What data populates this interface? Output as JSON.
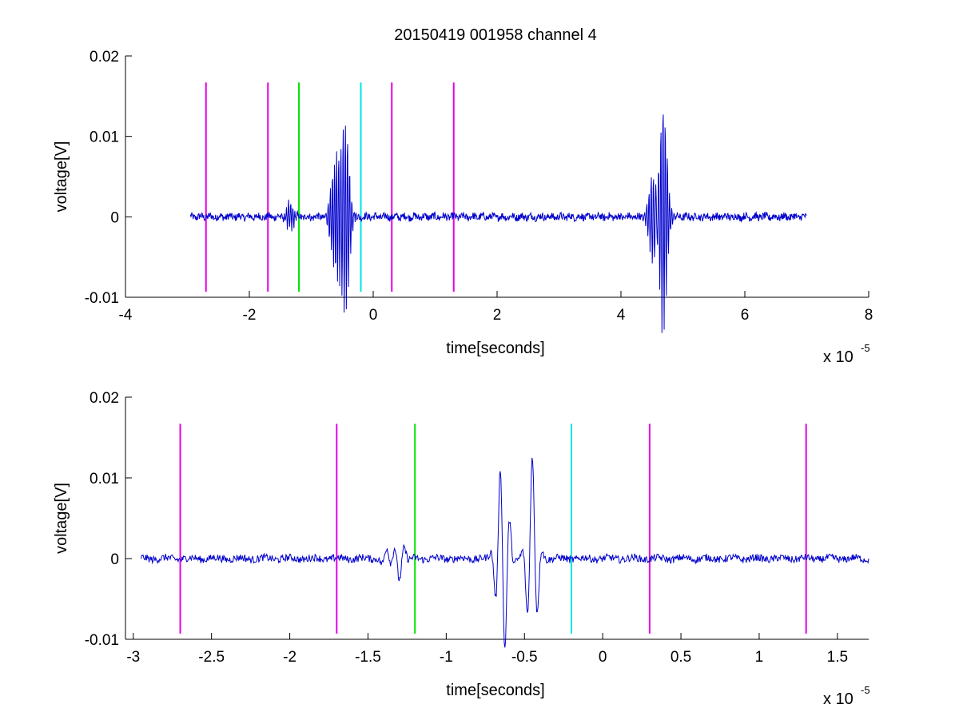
{
  "figure": {
    "title": "20150419 001958 channel 4",
    "background": "#ffffff"
  },
  "chart_data": [
    {
      "type": "line",
      "title": "20150419 001958 channel 4",
      "xlabel": "time[seconds]",
      "ylabel": "voltage[V]",
      "x_multiplier_label": "x 10",
      "x_multiplier_exponent": "-5",
      "xlim": [
        -4,
        8
      ],
      "ylim": [
        -0.01,
        0.02
      ],
      "x_ticks": [
        -4,
        -2,
        0,
        2,
        4,
        6,
        8
      ],
      "x_tick_labels": [
        "-4",
        "-2",
        "0",
        "2",
        "4",
        "6",
        "8"
      ],
      "y_ticks": [
        -0.01,
        0,
        0.01,
        0.02
      ],
      "y_tick_labels": [
        "-0.01",
        "0",
        "0.01",
        "0.02"
      ],
      "grid": false,
      "series_color": "#0000cc",
      "signal_range": [
        -2.95,
        7.0
      ],
      "bursts": [
        {
          "x": -1.35,
          "amp": 0.0018,
          "polarity": -1
        },
        {
          "x": -0.62,
          "amp": 0.0085,
          "polarity": 1
        },
        {
          "x": -0.58,
          "amp": 0.0085,
          "polarity": -1
        },
        {
          "x": -0.45,
          "amp": 0.0122,
          "polarity": 1
        },
        {
          "x": 4.52,
          "amp": 0.0078,
          "polarity": 1
        },
        {
          "x": 4.55,
          "amp": 0.0062,
          "polarity": -1
        },
        {
          "x": 4.68,
          "amp": 0.015,
          "polarity": 1
        }
      ],
      "vlines": [
        {
          "x": -2.7,
          "color": "#e600e6"
        },
        {
          "x": -1.7,
          "color": "#e600e6"
        },
        {
          "x": -1.2,
          "color": "#00e600"
        },
        {
          "x": -0.2,
          "color": "#00e6e6"
        },
        {
          "x": 0.3,
          "color": "#e600e6"
        },
        {
          "x": 1.3,
          "color": "#e600e6"
        }
      ],
      "vline_range": [
        -0.0093,
        0.0167
      ]
    },
    {
      "type": "line",
      "xlabel": "time[seconds]",
      "ylabel": "voltage[V]",
      "x_multiplier_label": "x 10",
      "x_multiplier_exponent": "-5",
      "xlim": [
        -3.05,
        1.7
      ],
      "ylim": [
        -0.01,
        0.02
      ],
      "x_ticks": [
        -3,
        -2.5,
        -2,
        -1.5,
        -1,
        -0.5,
        0,
        0.5,
        1,
        1.5
      ],
      "x_tick_labels": [
        "-3",
        "-2.5",
        "-2",
        "-1.5",
        "-1",
        "-0.5",
        "0",
        "0.5",
        "1",
        "1.5"
      ],
      "y_ticks": [
        -0.01,
        0,
        0.01,
        0.02
      ],
      "y_tick_labels": [
        "-0.01",
        "0",
        "0.01",
        "0.02"
      ],
      "grid": false,
      "series_color": "#0000cc",
      "signal_range": [
        -2.95,
        1.7
      ],
      "bursts": [
        {
          "x": -1.38,
          "amp": 0.0012,
          "polarity": 1
        },
        {
          "x": -1.3,
          "amp": 0.0025,
          "polarity": -1
        },
        {
          "x": -0.65,
          "amp": 0.0085,
          "polarity": 1
        },
        {
          "x": -0.63,
          "amp": 0.0083,
          "polarity": -1
        },
        {
          "x": -0.45,
          "amp": 0.0123,
          "polarity": 1
        }
      ],
      "vlines": [
        {
          "x": -2.7,
          "color": "#e600e6"
        },
        {
          "x": -1.7,
          "color": "#e600e6"
        },
        {
          "x": -1.2,
          "color": "#00e600"
        },
        {
          "x": -0.2,
          "color": "#00e6e6"
        },
        {
          "x": 0.3,
          "color": "#e600e6"
        },
        {
          "x": 1.3,
          "color": "#e600e6"
        }
      ],
      "vline_range": [
        -0.0093,
        0.0167
      ]
    }
  ]
}
